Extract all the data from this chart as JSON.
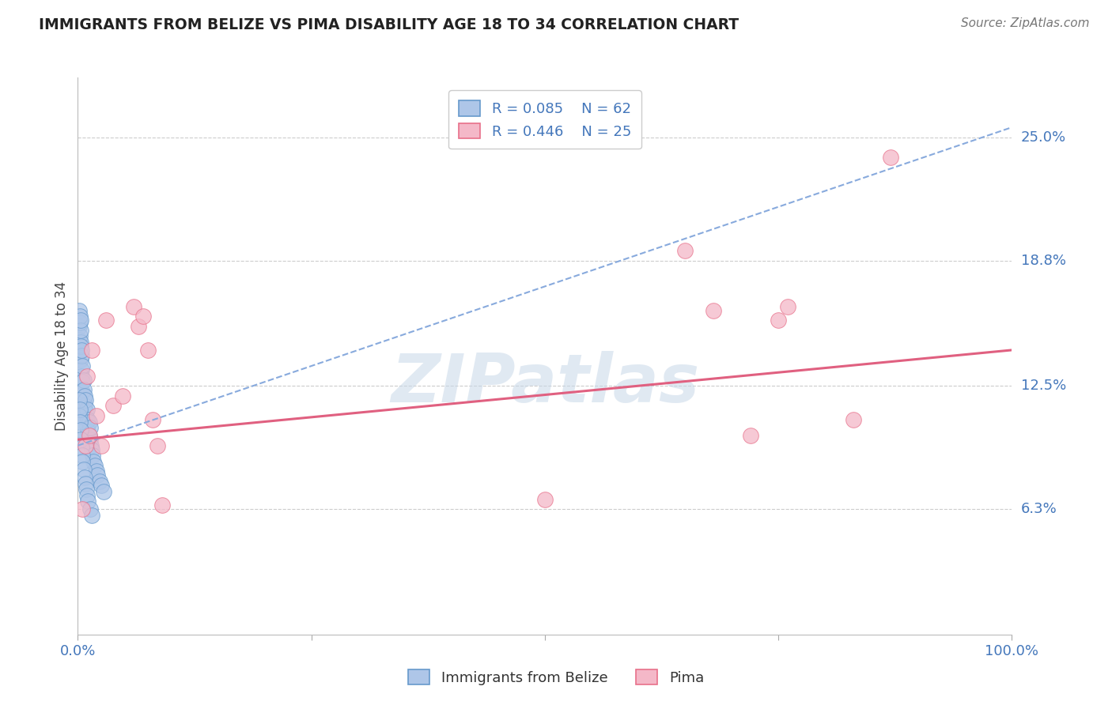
{
  "title": "IMMIGRANTS FROM BELIZE VS PIMA DISABILITY AGE 18 TO 34 CORRELATION CHART",
  "source": "Source: ZipAtlas.com",
  "ylabel": "Disability Age 18 to 34",
  "xlim": [
    0,
    1.0
  ],
  "ylim": [
    0,
    0.28
  ],
  "ytick_values": [
    0.063,
    0.125,
    0.188,
    0.25
  ],
  "ytick_labels": [
    "6.3%",
    "12.5%",
    "18.8%",
    "25.0%"
  ],
  "blue_R": 0.085,
  "blue_N": 62,
  "pink_R": 0.446,
  "pink_N": 25,
  "blue_color": "#aec6e8",
  "pink_color": "#f4b8c8",
  "blue_edge_color": "#6699cc",
  "pink_edge_color": "#e8708a",
  "blue_trend_color": "#88aadd",
  "pink_trend_color": "#e06080",
  "watermark": "ZIPatlas",
  "blue_points_x": [
    0.001,
    0.001,
    0.001,
    0.002,
    0.002,
    0.002,
    0.002,
    0.003,
    0.003,
    0.003,
    0.003,
    0.003,
    0.004,
    0.004,
    0.004,
    0.004,
    0.005,
    0.005,
    0.005,
    0.006,
    0.006,
    0.006,
    0.007,
    0.007,
    0.008,
    0.008,
    0.009,
    0.01,
    0.01,
    0.011,
    0.011,
    0.012,
    0.012,
    0.013,
    0.013,
    0.014,
    0.015,
    0.016,
    0.017,
    0.018,
    0.02,
    0.021,
    0.023,
    0.025,
    0.028,
    0.001,
    0.001,
    0.002,
    0.002,
    0.003,
    0.003,
    0.004,
    0.005,
    0.005,
    0.006,
    0.007,
    0.008,
    0.009,
    0.01,
    0.011,
    0.013,
    0.015
  ],
  "blue_points_y": [
    0.155,
    0.163,
    0.148,
    0.15,
    0.157,
    0.142,
    0.16,
    0.138,
    0.147,
    0.153,
    0.145,
    0.158,
    0.133,
    0.14,
    0.13,
    0.143,
    0.127,
    0.135,
    0.122,
    0.118,
    0.128,
    0.123,
    0.115,
    0.12,
    0.112,
    0.118,
    0.108,
    0.105,
    0.113,
    0.102,
    0.108,
    0.1,
    0.107,
    0.098,
    0.104,
    0.095,
    0.093,
    0.09,
    0.087,
    0.085,
    0.082,
    0.08,
    0.077,
    0.075,
    0.072,
    0.11,
    0.118,
    0.113,
    0.107,
    0.103,
    0.098,
    0.094,
    0.09,
    0.087,
    0.083,
    0.079,
    0.076,
    0.073,
    0.07,
    0.067,
    0.063,
    0.06
  ],
  "pink_points_x": [
    0.005,
    0.008,
    0.01,
    0.012,
    0.015,
    0.02,
    0.025,
    0.03,
    0.038,
    0.048,
    0.06,
    0.065,
    0.07,
    0.075,
    0.08,
    0.085,
    0.09,
    0.5,
    0.65,
    0.68,
    0.72,
    0.75,
    0.76,
    0.83,
    0.87
  ],
  "pink_points_y": [
    0.063,
    0.095,
    0.13,
    0.1,
    0.143,
    0.11,
    0.095,
    0.158,
    0.115,
    0.12,
    0.165,
    0.155,
    0.16,
    0.143,
    0.108,
    0.095,
    0.065,
    0.068,
    0.193,
    0.163,
    0.1,
    0.158,
    0.165,
    0.108,
    0.24
  ],
  "blue_trend_start_y": 0.095,
  "blue_trend_end_y": 0.255,
  "pink_trend_start_y": 0.098,
  "pink_trend_end_y": 0.143
}
